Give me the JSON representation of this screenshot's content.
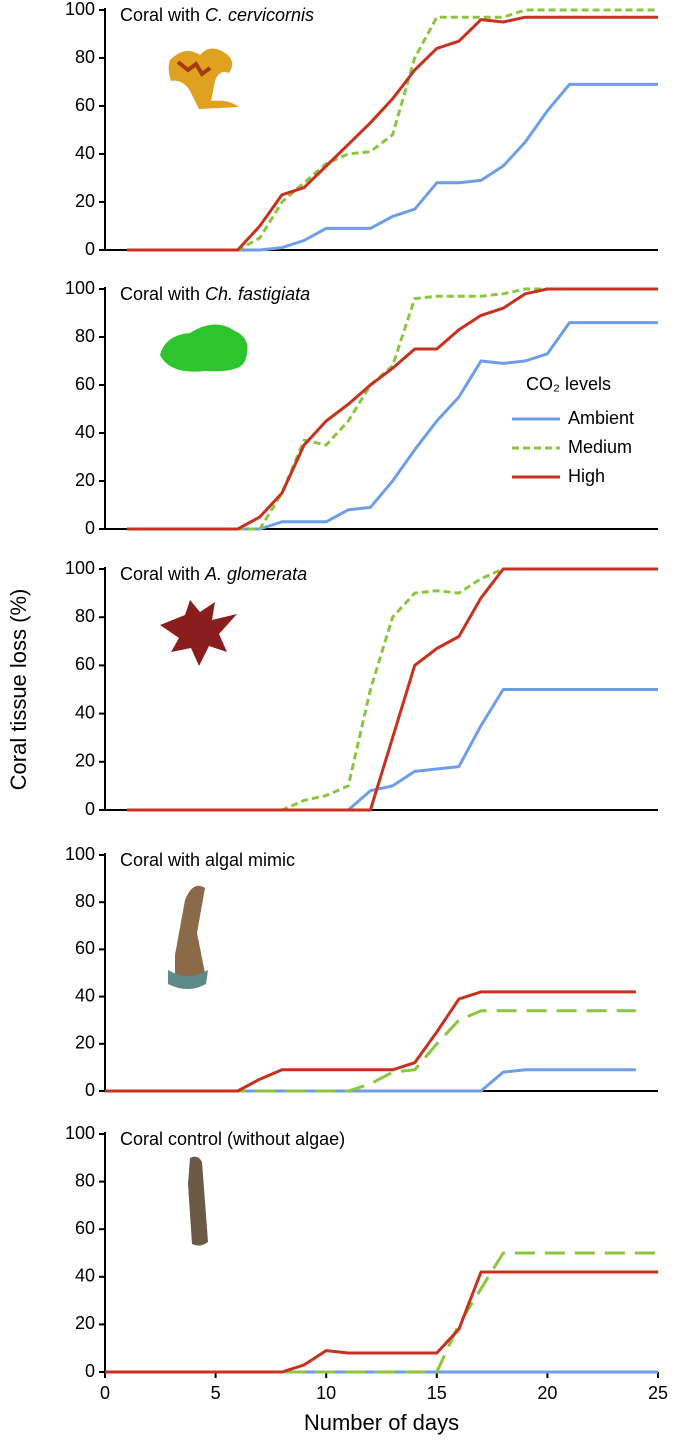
{
  "chart_data": [
    {
      "type": "line",
      "title": [
        "Coral with",
        "C. cervicornis"
      ],
      "x": [
        1,
        2,
        3,
        4,
        5,
        6,
        7,
        8,
        9,
        10,
        11,
        12,
        13,
        14,
        15,
        16,
        17,
        18,
        19,
        20,
        21,
        22,
        23,
        24,
        25
      ],
      "xlim": [
        0,
        25
      ],
      "ylim": [
        0,
        100
      ],
      "yticks": [
        0,
        20,
        40,
        60,
        80,
        100
      ],
      "series": [
        {
          "name": "Ambient",
          "color": "#6f9ee8",
          "style": "solid",
          "values": [
            0,
            0,
            0,
            0,
            0,
            0,
            0,
            1,
            4,
            9,
            9,
            9,
            14,
            17,
            28,
            28,
            29,
            35,
            45,
            58,
            69,
            69,
            69,
            69,
            69
          ]
        },
        {
          "name": "Medium",
          "color": "#8cc63f",
          "style": "dotted",
          "values": [
            0,
            0,
            0,
            0,
            0,
            0,
            5,
            20,
            28,
            36,
            40,
            41,
            48,
            80,
            97,
            97,
            97,
            97,
            100,
            100,
            100,
            100,
            100,
            100,
            100
          ]
        },
        {
          "name": "High",
          "color": "#c8311f",
          "style": "solid",
          "values": [
            0,
            0,
            0,
            0,
            0,
            0,
            10,
            23,
            26,
            35,
            44,
            53,
            63,
            75,
            84,
            87,
            96,
            95,
            97,
            97,
            97,
            97,
            97,
            97,
            97
          ]
        }
      ]
    },
    {
      "type": "line",
      "title": [
        "Coral with",
        "Ch. fastigiata"
      ],
      "x": [
        1,
        2,
        3,
        4,
        5,
        6,
        7,
        8,
        9,
        10,
        11,
        12,
        13,
        14,
        15,
        16,
        17,
        18,
        19,
        20,
        21,
        22,
        23,
        24,
        25
      ],
      "xlim": [
        0,
        25
      ],
      "ylim": [
        0,
        100
      ],
      "yticks": [
        0,
        20,
        40,
        60,
        80,
        100
      ],
      "legend": "right",
      "legend_title": "CO₂ levels",
      "series": [
        {
          "name": "Ambient",
          "color": "#6f9ee8",
          "style": "solid",
          "values": [
            0,
            0,
            0,
            0,
            0,
            0,
            0,
            3,
            3,
            3,
            8,
            9,
            20,
            33,
            45,
            55,
            70,
            69,
            70,
            73,
            86,
            86,
            86,
            86,
            86
          ]
        },
        {
          "name": "Medium",
          "color": "#8cc63f",
          "style": "dotted",
          "values": [
            0,
            0,
            0,
            0,
            0,
            0,
            0,
            15,
            37,
            35,
            45,
            60,
            68,
            96,
            97,
            97,
            97,
            98,
            100,
            100,
            100,
            100,
            100,
            100,
            100
          ]
        },
        {
          "name": "High",
          "color": "#c8311f",
          "style": "solid",
          "values": [
            0,
            0,
            0,
            0,
            0,
            0,
            5,
            15,
            35,
            45,
            52,
            60,
            67,
            75,
            75,
            83,
            89,
            92,
            98,
            100,
            100,
            100,
            100,
            100,
            100
          ]
        }
      ]
    },
    {
      "type": "line",
      "title": [
        "Coral with",
        "A. glomerata"
      ],
      "ylabel": "Coral tissue loss (%)",
      "x": [
        1,
        2,
        3,
        4,
        5,
        6,
        7,
        8,
        9,
        10,
        11,
        12,
        13,
        14,
        15,
        16,
        17,
        18,
        19,
        20,
        21,
        22,
        23,
        24,
        25
      ],
      "xlim": [
        0,
        25
      ],
      "ylim": [
        0,
        100
      ],
      "yticks": [
        0,
        20,
        40,
        60,
        80,
        100
      ],
      "series": [
        {
          "name": "Ambient",
          "color": "#6f9ee8",
          "style": "solid",
          "values": [
            0,
            0,
            0,
            0,
            0,
            0,
            0,
            0,
            0,
            0,
            0,
            8,
            10,
            16,
            17,
            18,
            35,
            50,
            50,
            50,
            50,
            50,
            50,
            50,
            50
          ]
        },
        {
          "name": "Medium",
          "color": "#8cc63f",
          "style": "dotted",
          "values": [
            0,
            0,
            0,
            0,
            0,
            0,
            0,
            0,
            4,
            6,
            10,
            50,
            80,
            90,
            91,
            90,
            96,
            100,
            100,
            100,
            100,
            100,
            100,
            100,
            100
          ]
        },
        {
          "name": "High",
          "color": "#c8311f",
          "style": "solid",
          "values": [
            0,
            0,
            0,
            0,
            0,
            0,
            0,
            0,
            0,
            0,
            0,
            0,
            30,
            60,
            67,
            72,
            88,
            100,
            100,
            100,
            100,
            100,
            100,
            100,
            100
          ]
        }
      ]
    },
    {
      "type": "line",
      "title": [
        "Coral with algal mimic"
      ],
      "x": [
        0,
        1,
        2,
        3,
        4,
        5,
        6,
        7,
        8,
        9,
        10,
        11,
        12,
        13,
        14,
        15,
        16,
        17,
        18,
        19,
        20,
        21,
        22,
        23,
        24
      ],
      "xlim": [
        0,
        25
      ],
      "ylim": [
        0,
        100
      ],
      "yticks": [
        0,
        20,
        40,
        60,
        80,
        100
      ],
      "series": [
        {
          "name": "Ambient",
          "color": "#6f9ee8",
          "style": "solid",
          "values": [
            0,
            0,
            0,
            0,
            0,
            0,
            0,
            0,
            0,
            0,
            0,
            0,
            0,
            0,
            0,
            0,
            0,
            0,
            8,
            9,
            9,
            9,
            9,
            9,
            9
          ]
        },
        {
          "name": "Medium",
          "color": "#8cc63f",
          "style": "dashed",
          "values": [
            0,
            0,
            0,
            0,
            0,
            0,
            0,
            0,
            0,
            0,
            0,
            0,
            3,
            8,
            9,
            20,
            30,
            34,
            34,
            34,
            34,
            34,
            34,
            34,
            34
          ]
        },
        {
          "name": "High",
          "color": "#c8311f",
          "style": "solid",
          "values": [
            0,
            0,
            0,
            0,
            0,
            0,
            0,
            5,
            9,
            9,
            9,
            9,
            9,
            9,
            12,
            25,
            39,
            42,
            42,
            42,
            42,
            42,
            42,
            42,
            42
          ]
        }
      ]
    },
    {
      "type": "line",
      "title": [
        "Coral control (without algae)"
      ],
      "xlabel": "Number of days",
      "x": [
        0,
        1,
        2,
        3,
        4,
        5,
        6,
        7,
        8,
        9,
        10,
        11,
        12,
        13,
        14,
        15,
        16,
        17,
        18,
        19,
        20,
        21,
        22,
        23,
        24,
        25
      ],
      "xlim": [
        0,
        25
      ],
      "xticks": [
        0,
        5,
        10,
        15,
        20,
        25
      ],
      "ylim": [
        0,
        100
      ],
      "yticks": [
        0,
        20,
        40,
        60,
        80,
        100
      ],
      "series": [
        {
          "name": "Ambient",
          "color": "#6f9ee8",
          "style": "solid",
          "values": [
            0,
            0,
            0,
            0,
            0,
            0,
            0,
            0,
            0,
            0,
            0,
            0,
            0,
            0,
            0,
            0,
            0,
            0,
            0,
            0,
            0,
            0,
            0,
            0,
            0,
            0
          ]
        },
        {
          "name": "Medium",
          "color": "#8cc63f",
          "style": "dashed",
          "values": [
            0,
            0,
            0,
            0,
            0,
            0,
            0,
            0,
            0,
            0,
            0,
            0,
            0,
            0,
            0,
            0,
            20,
            35,
            50,
            50,
            50,
            50,
            50,
            50,
            50,
            50
          ]
        },
        {
          "name": "High",
          "color": "#c8311f",
          "style": "solid",
          "values": [
            0,
            0,
            0,
            0,
            0,
            0,
            0,
            0,
            0,
            3,
            9,
            8,
            8,
            8,
            8,
            8,
            18,
            42,
            42,
            42,
            42,
            42,
            42,
            42,
            42,
            42
          ]
        }
      ]
    }
  ]
}
